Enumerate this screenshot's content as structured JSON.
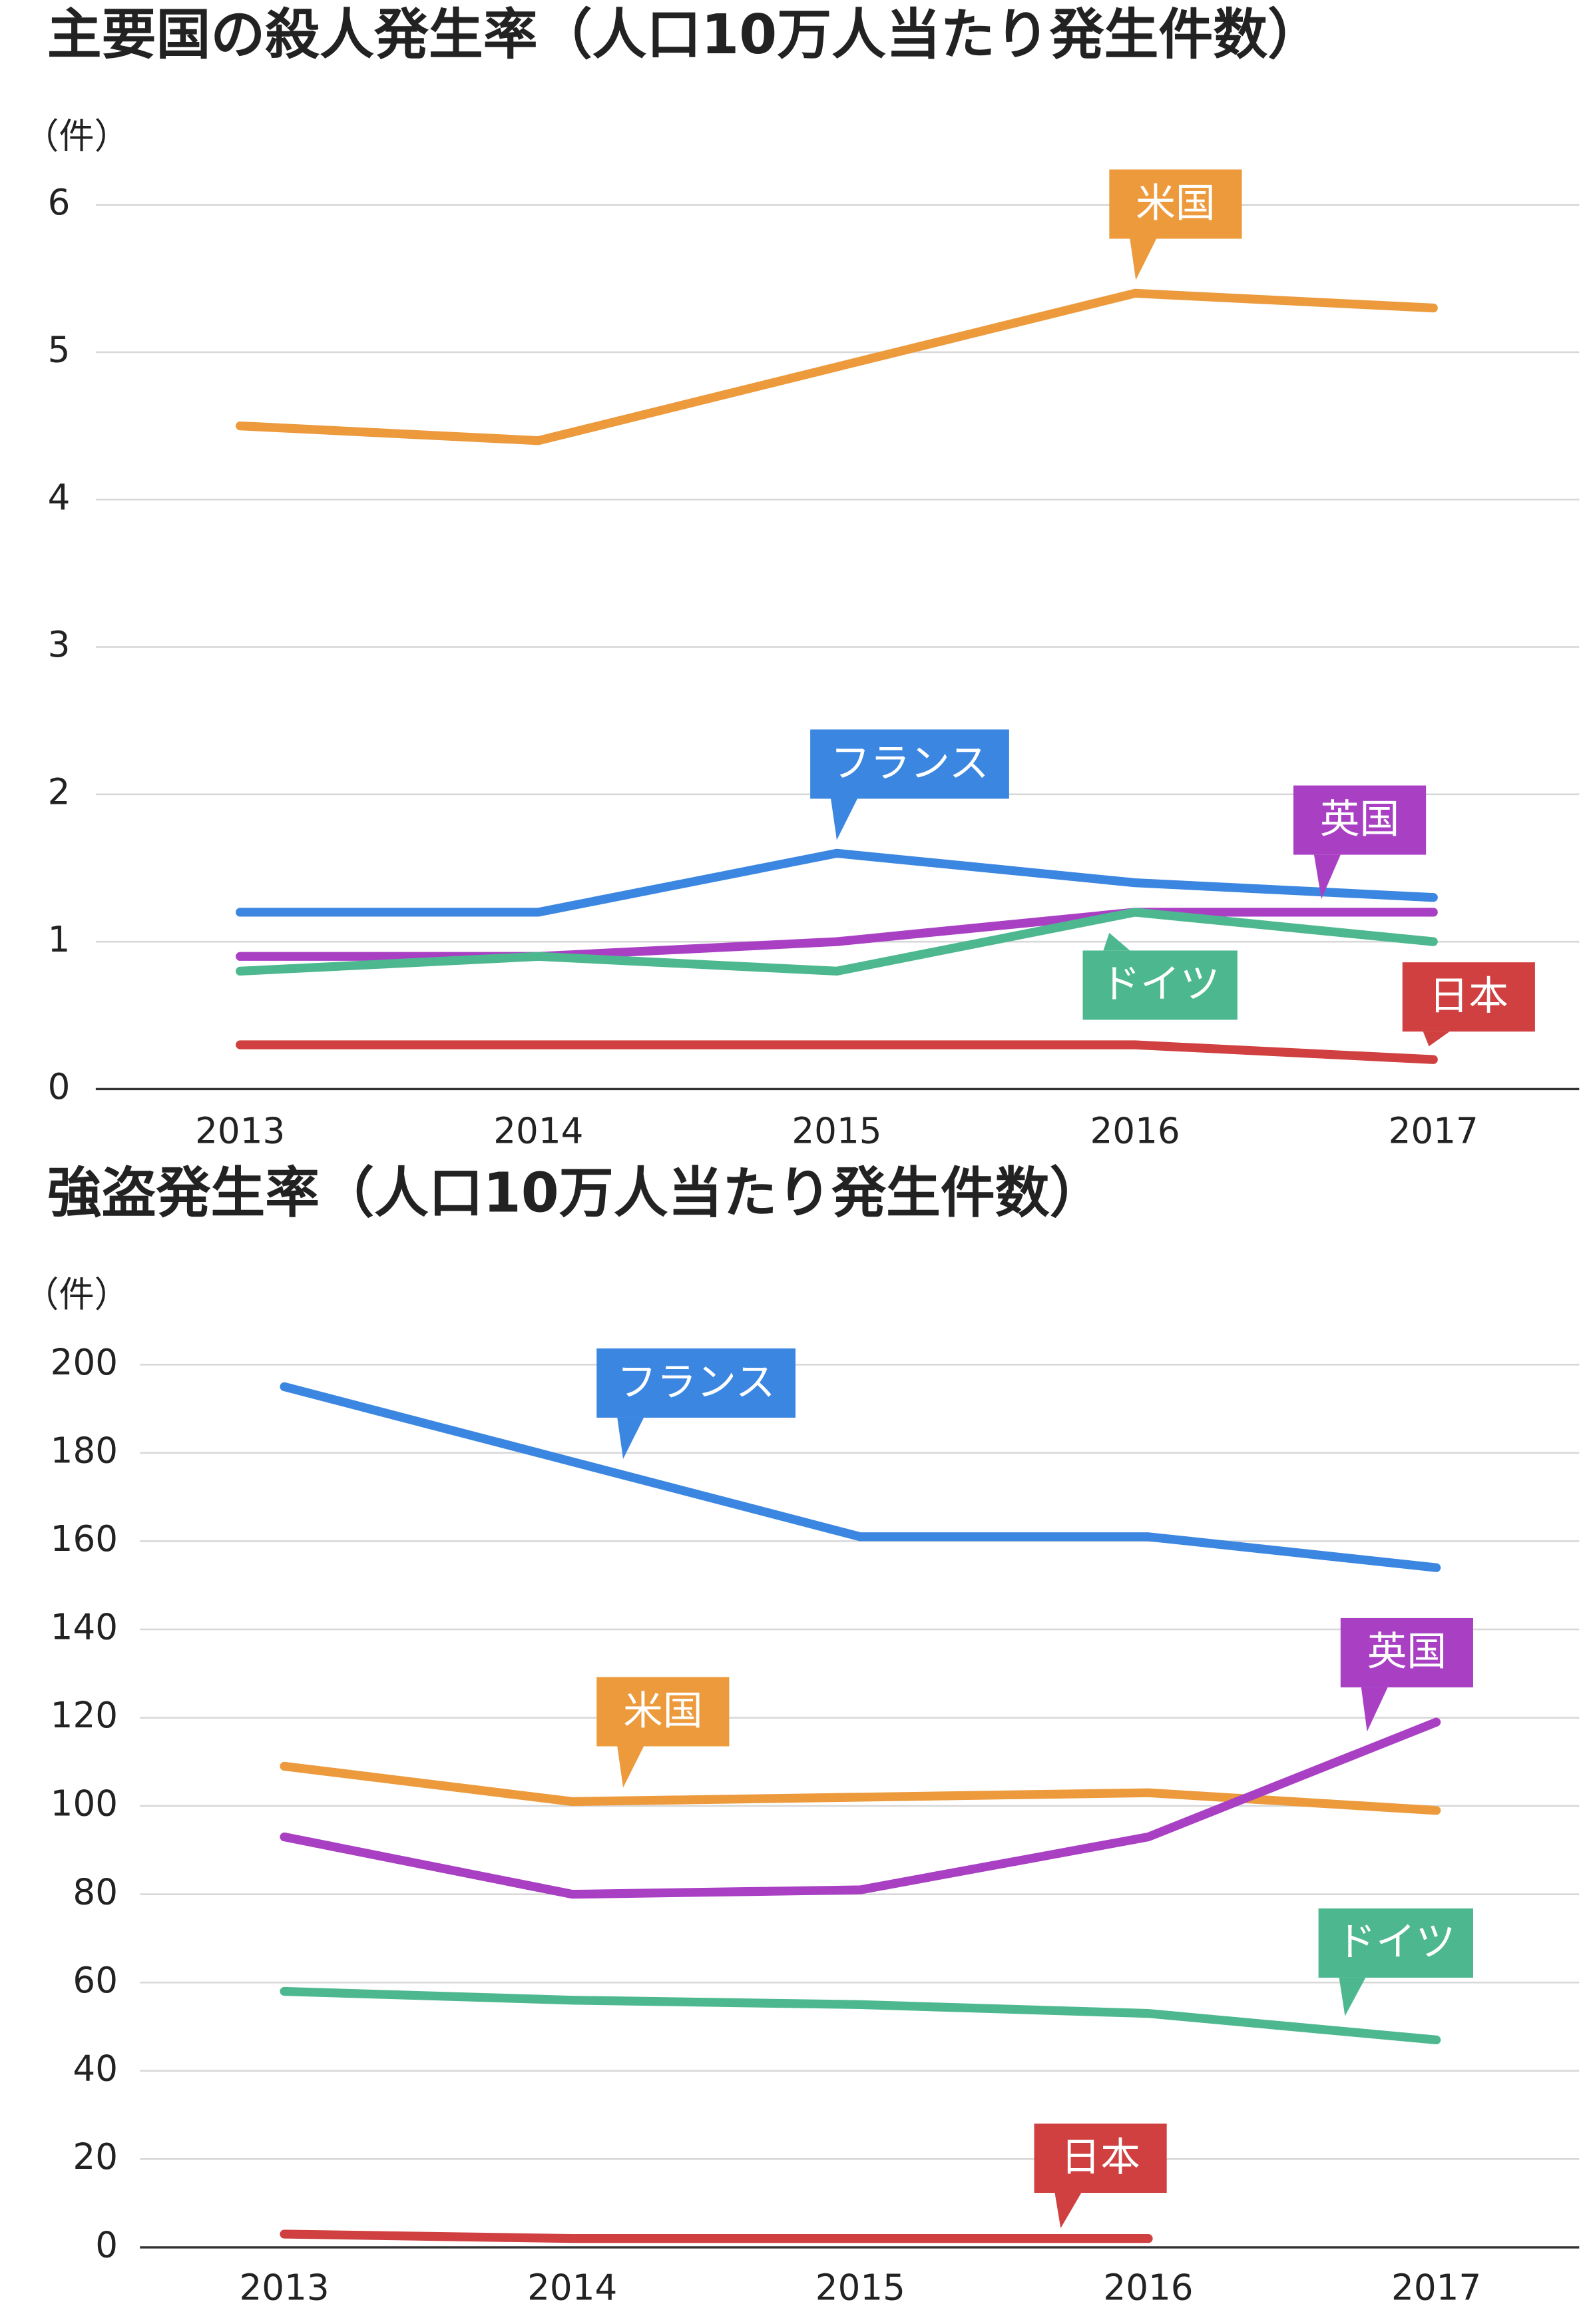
{
  "chart_data": [
    {
      "type": "line",
      "title": "主要国の殺人発生率（人口10万人当たり発生件数）",
      "y_label": "（件）",
      "categories": [
        "2013",
        "2014",
        "2015",
        "2016",
        "2017"
      ],
      "ylim": [
        0,
        6
      ],
      "yticks": [
        0,
        1,
        2,
        3,
        4,
        5,
        6
      ],
      "grid": true,
      "series": [
        {
          "name": "米国",
          "color": "#ec9a3c",
          "values": [
            4.5,
            4.4,
            4.9,
            5.4,
            5.3
          ]
        },
        {
          "name": "フランス",
          "color": "#3b86e0",
          "values": [
            1.2,
            1.2,
            1.6,
            1.4,
            1.3
          ]
        },
        {
          "name": "英国",
          "color": "#a940c4",
          "values": [
            0.9,
            0.9,
            1.0,
            1.2,
            1.2
          ]
        },
        {
          "name": "ドイツ",
          "color": "#4db890",
          "values": [
            0.8,
            0.9,
            0.8,
            1.2,
            1.0
          ]
        },
        {
          "name": "日本",
          "color": "#d04040",
          "values": [
            0.3,
            0.3,
            0.3,
            0.3,
            0.2
          ]
        }
      ]
    },
    {
      "type": "line",
      "title": "強盗発生率（人口10万人当たり発生件数）",
      "y_label": "（件）",
      "categories": [
        "2013",
        "2014",
        "2015",
        "2016",
        "2017"
      ],
      "ylim": [
        0,
        200
      ],
      "yticks": [
        0,
        20,
        40,
        60,
        80,
        100,
        120,
        140,
        160,
        180,
        200
      ],
      "grid": true,
      "series": [
        {
          "name": "フランス",
          "color": "#3b86e0",
          "values": [
            195,
            178,
            161,
            161,
            154
          ]
        },
        {
          "name": "米国",
          "color": "#ec9a3c",
          "values": [
            109,
            101,
            102,
            103,
            99
          ]
        },
        {
          "name": "英国",
          "color": "#a940c4",
          "values": [
            93,
            80,
            81,
            93,
            119
          ]
        },
        {
          "name": "ドイツ",
          "color": "#4db890",
          "values": [
            58,
            56,
            55,
            53,
            47
          ]
        },
        {
          "name": "日本",
          "color": "#d04040",
          "values": [
            3,
            2,
            2,
            2,
            null
          ]
        }
      ]
    }
  ]
}
